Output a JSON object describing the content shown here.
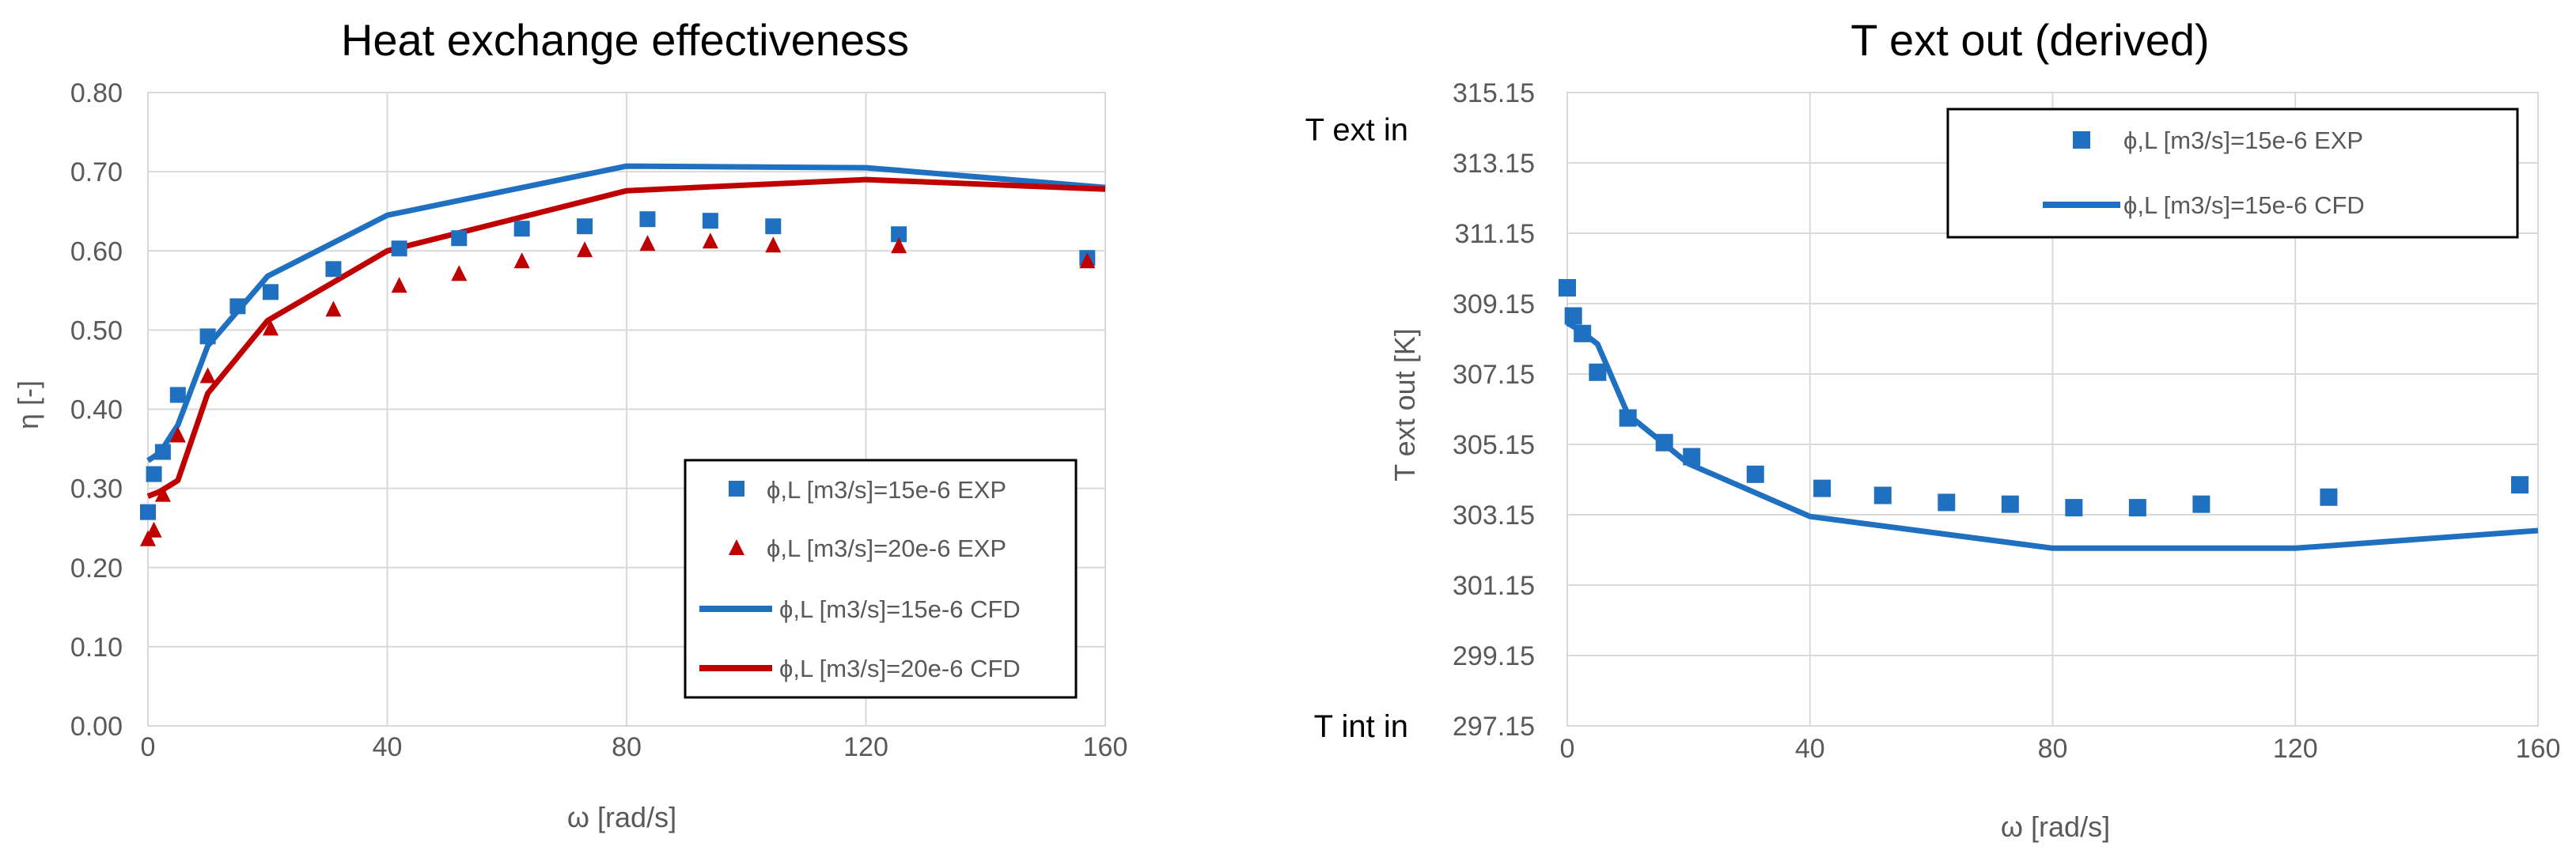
{
  "colors": {
    "blue": "#1f70c1",
    "red": "#c00000"
  },
  "chart_data": [
    {
      "type": "scatter+line",
      "title": "Heat exchange effectiveness",
      "xlabel": "ω [rad/s]",
      "ylabel": "η [-]",
      "xlim": [
        0,
        160
      ],
      "ylim": [
        0,
        0.8
      ],
      "xticks": [
        0,
        40,
        80,
        120,
        160
      ],
      "xtick_labels": [
        "0",
        "40",
        "80",
        "120",
        "160"
      ],
      "yticks": [
        0,
        0.1,
        0.2,
        0.3,
        0.4,
        0.5,
        0.6,
        0.7,
        0.8
      ],
      "ytick_labels": [
        "0.00",
        "0.10",
        "0.20",
        "0.30",
        "0.40",
        "0.50",
        "0.60",
        "0.70",
        "0.80"
      ],
      "legend_position": "bottom-right",
      "series": [
        {
          "name": "ϕ,L [m3/s]=15e-6 EXP",
          "kind": "marker",
          "marker": "square",
          "color": "#1f70c1",
          "x": [
            0,
            1,
            2.5,
            5,
            10,
            15,
            20.5,
            31,
            42,
            52,
            62.5,
            73,
            83.5,
            94,
            104.5,
            125.5,
            157
          ],
          "y": [
            0.27,
            0.318,
            0.346,
            0.418,
            0.492,
            0.53,
            0.548,
            0.577,
            0.603,
            0.616,
            0.628,
            0.631,
            0.64,
            0.638,
            0.631,
            0.621,
            0.591
          ]
        },
        {
          "name": "ϕ,L [m3/s]=20e-6 EXP",
          "kind": "marker",
          "marker": "triangle",
          "color": "#c00000",
          "x": [
            0,
            1,
            2.5,
            5,
            10,
            20.5,
            31,
            42,
            52,
            62.5,
            73,
            83.5,
            94,
            104.5,
            125.5,
            157
          ],
          "y": [
            0.237,
            0.248,
            0.293,
            0.368,
            0.443,
            0.503,
            0.527,
            0.557,
            0.572,
            0.588,
            0.602,
            0.61,
            0.613,
            0.608,
            0.607,
            0.588
          ]
        },
        {
          "name": "ϕ,L [m3/s]=15e-6 CFD",
          "kind": "line",
          "color": "#1f70c1",
          "x": [
            0,
            2,
            5,
            10,
            20,
            40,
            80,
            120,
            160
          ],
          "y": [
            0.335,
            0.345,
            0.38,
            0.48,
            0.568,
            0.645,
            0.707,
            0.705,
            0.68
          ]
        },
        {
          "name": "ϕ,L [m3/s]=20e-6 CFD",
          "kind": "line",
          "color": "#c00000",
          "x": [
            0,
            2,
            5,
            10,
            20,
            40,
            80,
            120,
            160
          ],
          "y": [
            0.29,
            0.296,
            0.31,
            0.42,
            0.512,
            0.6,
            0.676,
            0.69,
            0.678
          ]
        }
      ]
    },
    {
      "type": "scatter+line",
      "title": "T ext out (derived)",
      "xlabel": "ω [rad/s]",
      "ylabel": "T ext out [K]",
      "xlim": [
        0,
        160
      ],
      "ylim": [
        297.15,
        315.15
      ],
      "xticks": [
        0,
        40,
        80,
        120,
        160
      ],
      "xtick_labels": [
        "0",
        "40",
        "80",
        "120",
        "160"
      ],
      "yticks": [
        297.15,
        299.15,
        301.15,
        303.15,
        305.15,
        307.15,
        309.15,
        311.15,
        313.15,
        315.15
      ],
      "ytick_labels": [
        "297.15",
        "299.15",
        "301.15",
        "303.15",
        "305.15",
        "307.15",
        "309.15",
        "311.15",
        "313.15",
        "315.15"
      ],
      "annotations": [
        {
          "text": "T ext in",
          "y": 314.1
        },
        {
          "text": "T int in",
          "y": 297.15
        }
      ],
      "legend_position": "top-right",
      "series": [
        {
          "name": "ϕ,L [m3/s]=15e-6 EXP",
          "kind": "marker",
          "marker": "square",
          "color": "#1f70c1",
          "x": [
            0,
            1,
            2.5,
            5,
            10,
            16,
            20.5,
            31,
            42,
            52,
            62.5,
            73,
            83.5,
            94,
            104.5,
            125.5,
            157
          ],
          "y": [
            309.6,
            308.8,
            308.3,
            307.2,
            305.9,
            305.2,
            304.8,
            304.3,
            303.9,
            303.7,
            303.5,
            303.45,
            303.35,
            303.35,
            303.45,
            303.65,
            304.0
          ]
        },
        {
          "name": "ϕ,L [m3/s]=15e-6 CFD",
          "kind": "line",
          "color": "#1f70c1",
          "x": [
            0,
            2,
            5,
            10,
            20,
            40,
            80,
            120,
            160
          ],
          "y": [
            308.6,
            308.4,
            308.0,
            306.0,
            304.6,
            303.1,
            302.2,
            302.2,
            302.7
          ]
        }
      ]
    }
  ]
}
